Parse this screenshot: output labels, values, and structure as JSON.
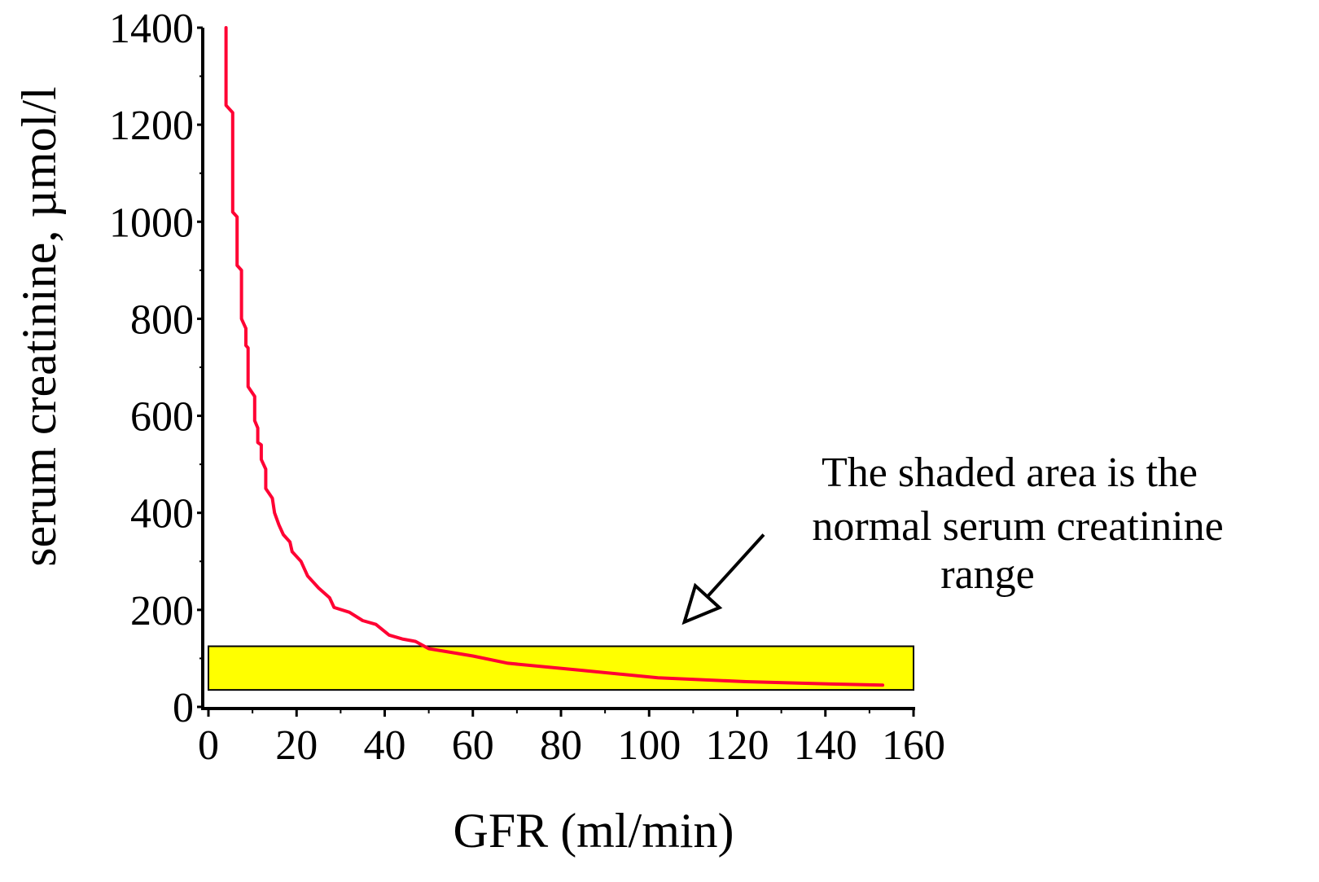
{
  "chart_data": {
    "type": "line",
    "title": "",
    "xlabel": "GFR (ml/min)",
    "ylabel": "serum creatinine, µmol/l",
    "xlim": [
      0,
      160
    ],
    "ylim": [
      0,
      1400
    ],
    "x_ticks": [
      "0",
      "20",
      "40",
      "60",
      "80",
      "100",
      "120",
      "140",
      "160"
    ],
    "y_ticks": [
      "0",
      "200",
      "400",
      "600",
      "800",
      "1000",
      "1200",
      "1400"
    ],
    "grid": false,
    "legend": "none",
    "series": [
      {
        "color": "#ff0033",
        "points": [
          [
            4,
            1400
          ],
          [
            4,
            1240
          ],
          [
            5.5,
            1225
          ],
          [
            5.5,
            1020
          ],
          [
            6.5,
            1010
          ],
          [
            6.5,
            910
          ],
          [
            7.5,
            900
          ],
          [
            7.5,
            800
          ],
          [
            8.5,
            780
          ],
          [
            8.5,
            745
          ],
          [
            9,
            740
          ],
          [
            9,
            660
          ],
          [
            10.5,
            640
          ],
          [
            10.5,
            590
          ],
          [
            11.2,
            575
          ],
          [
            11.2,
            545
          ],
          [
            12,
            540
          ],
          [
            12,
            510
          ],
          [
            13,
            490
          ],
          [
            13,
            450
          ],
          [
            14.5,
            430
          ],
          [
            15,
            400
          ],
          [
            16,
            375
          ],
          [
            17,
            355
          ],
          [
            18.5,
            340
          ],
          [
            19,
            320
          ],
          [
            21,
            300
          ],
          [
            22.5,
            270
          ],
          [
            25,
            245
          ],
          [
            27.5,
            225
          ],
          [
            28.5,
            205
          ],
          [
            32,
            195
          ],
          [
            35,
            178
          ],
          [
            38,
            170
          ],
          [
            41,
            148
          ],
          [
            44,
            140
          ],
          [
            47,
            135
          ],
          [
            50,
            120
          ],
          [
            60,
            105
          ],
          [
            68,
            90
          ],
          [
            85,
            75
          ],
          [
            102,
            60
          ],
          [
            122,
            52
          ],
          [
            138,
            48
          ],
          [
            153,
            45
          ]
        ]
      }
    ],
    "shaded_region": {
      "x_range": [
        0,
        160
      ],
      "y_range": [
        35,
        125
      ],
      "fill": "#ffff00",
      "stroke": "#000000"
    },
    "annotation": {
      "lines": [
        "The shaded area is the",
        "normal serum creatinine",
        "range"
      ],
      "arrow_from": [
        126,
        355
      ],
      "arrow_to": [
        108,
        175
      ]
    }
  }
}
